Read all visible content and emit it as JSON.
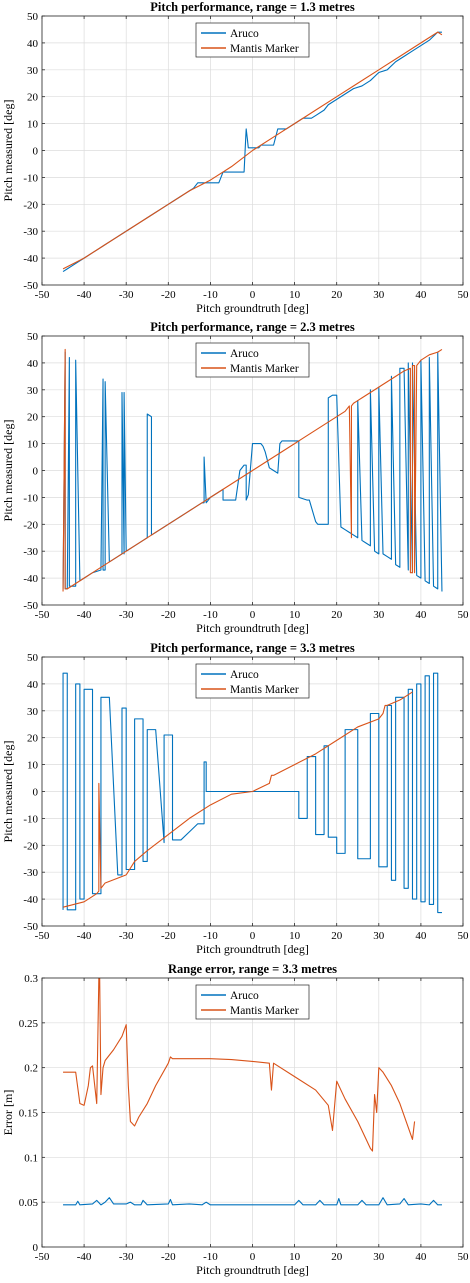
{
  "chart_data": [
    {
      "type": "line",
      "title": "Pitch performance, range = 1.3 metres",
      "xlabel": "Pitch groundtruth [deg]",
      "ylabel": "Pitch measured [deg]",
      "xlim": [
        -50,
        50
      ],
      "ylim": [
        -50,
        50
      ],
      "xticks": [
        -50,
        -40,
        -30,
        -20,
        -10,
        0,
        10,
        20,
        30,
        40,
        50
      ],
      "yticks": [
        -50,
        -40,
        -30,
        -20,
        -10,
        0,
        10,
        20,
        30,
        40,
        50
      ],
      "grid": true,
      "legend": "top-center",
      "series": [
        {
          "name": "Aruco",
          "color": "#0072BD",
          "x": [
            -45,
            -44,
            -43,
            -41,
            -40,
            -38,
            -37,
            -35,
            -34,
            -32,
            -31,
            -29,
            -28,
            -26,
            -25,
            -23,
            -22,
            -20,
            -19,
            -17,
            -16,
            -15,
            -14,
            -13,
            -12,
            -11,
            -10,
            -9,
            -8,
            -7,
            -5,
            -4,
            -3,
            -2,
            -1.6,
            -1.5,
            -1.2,
            -1,
            0,
            1,
            1.5,
            2,
            3,
            5,
            6,
            8,
            9,
            10,
            12,
            14,
            15,
            17,
            18,
            20,
            22,
            24,
            26,
            28,
            30,
            32,
            34,
            36,
            38,
            40,
            42,
            44,
            45
          ],
          "y": [
            -45,
            -44,
            -43,
            -41,
            -40,
            -38,
            -37,
            -35,
            -34,
            -32,
            -31,
            -29,
            -28,
            -26,
            -25,
            -23,
            -22,
            -20,
            -19,
            -17,
            -16,
            -15,
            -14,
            -12,
            -12,
            -12,
            -12,
            -12,
            -12,
            -8,
            -8,
            -8,
            -8,
            -8,
            5,
            8,
            4,
            1,
            1,
            1,
            1,
            2,
            2,
            2,
            8,
            8,
            9,
            10,
            12,
            12,
            13,
            15,
            17,
            19,
            21,
            23,
            24,
            26,
            29,
            30,
            33,
            35,
            37,
            39,
            41,
            44,
            44
          ]
        },
        {
          "name": "Mantis Marker",
          "color": "#D95319",
          "x": [
            -45,
            -40,
            -35,
            -30,
            -25,
            -20,
            -15,
            -10,
            -5,
            0,
            5,
            10,
            15,
            20,
            25,
            30,
            35,
            40,
            44,
            45
          ],
          "y": [
            -44,
            -40,
            -35,
            -30,
            -25,
            -20,
            -15,
            -11,
            -6,
            0,
            5,
            10,
            15,
            20,
            25,
            30,
            35,
            40,
            44,
            43
          ]
        }
      ]
    },
    {
      "type": "line",
      "title": "Pitch performance, range = 2.3 metres",
      "xlabel": "Pitch groundtruth [deg]",
      "ylabel": "Pitch measured [deg]",
      "xlim": [
        -50,
        50
      ],
      "ylim": [
        -50,
        50
      ],
      "xticks": [
        -50,
        -40,
        -30,
        -20,
        -10,
        0,
        10,
        20,
        30,
        40,
        50
      ],
      "yticks": [
        -50,
        -40,
        -30,
        -20,
        -10,
        0,
        10,
        20,
        30,
        40,
        50
      ],
      "grid": true,
      "legend": "top-center",
      "series": [
        {
          "name": "Aruco",
          "color": "#0072BD",
          "x": [
            -45,
            -44.5,
            -44.5,
            -44,
            -43.5,
            -43.5,
            -42,
            -42,
            -41,
            -40,
            -38,
            -36,
            -35.5,
            -35.5,
            -35,
            -35,
            -34,
            -32,
            -31,
            -31,
            -30.5,
            -30.5,
            -30,
            -28,
            -26,
            -25,
            -25,
            -24,
            -24,
            -23,
            -22,
            -21,
            -20,
            -19,
            -18,
            -17,
            -16,
            -14,
            -13,
            -12,
            -11.5,
            -11.5,
            -11,
            -10,
            -8,
            -7,
            -7,
            -6,
            -4,
            -3,
            -2,
            -1.5,
            -1.5,
            -1,
            0,
            1,
            2,
            2.5,
            3,
            4,
            5,
            6,
            6.5,
            6.5,
            7,
            10,
            11,
            11,
            13,
            13.5,
            15,
            15.5,
            16,
            17,
            18,
            18,
            19,
            20,
            21,
            22,
            23,
            24,
            25,
            25,
            26,
            27,
            28,
            28,
            29,
            30,
            30,
            31,
            32,
            33,
            33,
            34,
            35,
            35,
            36,
            37,
            37,
            38,
            38,
            39,
            40,
            40,
            41,
            42,
            42,
            43,
            44,
            44,
            45
          ],
          "y": [
            -44,
            44,
            -44,
            -44,
            42,
            -43,
            -43,
            41,
            -41,
            -40,
            -38,
            -37,
            34,
            -37,
            -37,
            33,
            -34,
            -32,
            -31,
            29,
            -31,
            29,
            -30,
            -28,
            -26,
            -25,
            21,
            20,
            -24,
            -23,
            -22,
            -21,
            -20,
            -19,
            -18,
            -17,
            -16,
            -14,
            -13,
            -12,
            -12,
            5,
            -12,
            -10,
            -8,
            -7,
            -11,
            -11,
            -11,
            0,
            2,
            2,
            -11,
            -9,
            10,
            10,
            10,
            9,
            7,
            1,
            0,
            -1,
            10,
            10,
            11,
            11,
            11,
            -10,
            -11,
            -11,
            -19,
            -20,
            -20,
            -20,
            -20,
            27,
            28,
            28,
            -21,
            -22,
            -23,
            -24,
            -25,
            26,
            -26,
            -27,
            -28,
            30,
            -30,
            -31,
            31,
            -31,
            -32,
            -33,
            35,
            -35,
            -36,
            38,
            38,
            -37,
            40,
            -38,
            40,
            -39,
            -40,
            41,
            -41,
            -42,
            42,
            -43,
            -44,
            44,
            -45
          ]
        },
        {
          "name": "Mantis Marker",
          "color": "#D95319",
          "x": [
            -45,
            -44.5,
            -44.5,
            -44,
            -42,
            -40,
            -38,
            -36,
            -34,
            -32,
            -30,
            -28,
            -26,
            -24,
            -22,
            -20,
            -18,
            -16,
            -14,
            -12,
            -10,
            -8,
            -6,
            -4,
            -2,
            0,
            2,
            4,
            6,
            8,
            10,
            12,
            14,
            16,
            18,
            20,
            22,
            23,
            23.5,
            23.5,
            24,
            25,
            26,
            28,
            30,
            32,
            34,
            36,
            37.5,
            37.5,
            38,
            38,
            38.5,
            38.5,
            39,
            40,
            42,
            44,
            45
          ],
          "y": [
            -45,
            45,
            -44,
            -44,
            -42,
            -40,
            -38,
            -36,
            -34,
            -32,
            -30,
            -28,
            -26,
            -24,
            -22,
            -20,
            -18,
            -16,
            -14,
            -12,
            -10,
            -8,
            -6,
            -4,
            -2,
            0,
            2,
            4,
            6,
            8,
            10,
            12,
            14,
            16,
            18,
            20,
            22,
            24,
            -25,
            24,
            25,
            26,
            27,
            29,
            31,
            33,
            35,
            37,
            38,
            -38,
            -38,
            39,
            39,
            -38,
            39,
            41,
            43,
            44,
            45
          ]
        }
      ]
    },
    {
      "type": "line",
      "title": "Pitch performance, range = 3.3 metres",
      "xlabel": "Pitch groundtruth [deg]",
      "ylabel": "Pitch measured [deg]",
      "xlim": [
        -50,
        50
      ],
      "ylim": [
        -50,
        50
      ],
      "xticks": [
        -50,
        -40,
        -30,
        -20,
        -10,
        0,
        10,
        20,
        30,
        40,
        50
      ],
      "yticks": [
        -50,
        -40,
        -30,
        -20,
        -10,
        0,
        10,
        20,
        30,
        40,
        50
      ],
      "grid": true,
      "legend": "top-center",
      "series": [
        {
          "name": "Aruco",
          "color": "#0072BD",
          "x": [
            -45,
            -45,
            -44,
            -44,
            -42,
            -42,
            -41,
            -41,
            -40,
            -40,
            -38,
            -38,
            -36,
            -36,
            -34,
            -32,
            -31,
            -31,
            -30,
            -30,
            -28,
            -28,
            -26,
            -26,
            -25,
            -25,
            -23,
            -21,
            -21,
            -19,
            -19,
            -17,
            -15,
            -13,
            -11.5,
            -11.5,
            -11,
            -11,
            -10,
            -10,
            -8,
            -6,
            -4,
            -2,
            0,
            2,
            4,
            6,
            8,
            10,
            11,
            11,
            13,
            13,
            15,
            15,
            17,
            17,
            18,
            18,
            20,
            20,
            22,
            22,
            25,
            25,
            28,
            28,
            30,
            30,
            32,
            32,
            33,
            33,
            34,
            34,
            36,
            36,
            37,
            37,
            38,
            38,
            39,
            39,
            40,
            40,
            41,
            41,
            42,
            42,
            43,
            43,
            44,
            44,
            45
          ],
          "y": [
            -44,
            44,
            44,
            -44,
            -44,
            40,
            40,
            -40,
            -40,
            38,
            38,
            -38,
            -38,
            35,
            35,
            -31,
            -31,
            31,
            31,
            -29,
            -29,
            27,
            27,
            -26,
            -26,
            23,
            23,
            -19,
            21,
            21,
            -18,
            -18,
            -15,
            -12,
            -12,
            11,
            11,
            0,
            0,
            0,
            0,
            0,
            0,
            0,
            0,
            0,
            0,
            0,
            0,
            0,
            0,
            -10,
            -10,
            13,
            13,
            -16,
            -16,
            17,
            17,
            -17,
            -17,
            -23,
            -23,
            23,
            23,
            -25,
            -25,
            29,
            29,
            -28,
            -28,
            32,
            32,
            -33,
            -33,
            35,
            35,
            -36,
            -36,
            38,
            38,
            -40,
            -40,
            40,
            40,
            -41,
            -41,
            43,
            43,
            -42,
            -42,
            44,
            44,
            -45,
            -45
          ]
        },
        {
          "name": "Mantis Marker",
          "color": "#D95319",
          "x": [
            -45,
            -40,
            -37,
            -36.5,
            -36.5,
            -36,
            -35,
            -30,
            -28,
            -25,
            -20,
            -15,
            -10,
            -5,
            0,
            4,
            4.5,
            5,
            10,
            15,
            20,
            25,
            30,
            31,
            31.5,
            32,
            35,
            37,
            38
          ],
          "y": [
            -43,
            -41,
            -38,
            -37,
            3,
            -36,
            -34,
            -31,
            -26,
            -22,
            -16,
            -10,
            -5,
            -1,
            0,
            3,
            6,
            6,
            10,
            14,
            19,
            24,
            27,
            29,
            32,
            32,
            34,
            36,
            37
          ]
        }
      ]
    },
    {
      "type": "line",
      "title": "Range error, range = 3.3 metres",
      "xlabel": "Pitch groundtruth [deg]",
      "ylabel": "Error [m]",
      "xlim": [
        -50,
        50
      ],
      "ylim": [
        0,
        0.3
      ],
      "xticks": [
        -50,
        -40,
        -30,
        -20,
        -10,
        0,
        10,
        20,
        30,
        40,
        50
      ],
      "yticks": [
        0,
        0.05,
        0.1,
        0.15,
        0.2,
        0.25,
        0.3
      ],
      "grid": true,
      "legend": "top-center",
      "series": [
        {
          "name": "Aruco",
          "color": "#0072BD",
          "x": [
            -45,
            -42,
            -41.5,
            -41,
            -38,
            -37,
            -36,
            -35,
            -34,
            -33,
            -30,
            -29,
            -28,
            -26.5,
            -26,
            -25,
            -20,
            -19.5,
            -19,
            -15,
            -12,
            -11,
            -10,
            0,
            10,
            11,
            12,
            15,
            16,
            17,
            20,
            20.5,
            21,
            25,
            26,
            27,
            30,
            31,
            32,
            35,
            36,
            37,
            40,
            42,
            43,
            44,
            45
          ],
          "y": [
            0.047,
            0.047,
            0.051,
            0.047,
            0.048,
            0.052,
            0.047,
            0.05,
            0.055,
            0.048,
            0.048,
            0.05,
            0.047,
            0.047,
            0.052,
            0.047,
            0.048,
            0.053,
            0.047,
            0.048,
            0.047,
            0.05,
            0.047,
            0.047,
            0.047,
            0.052,
            0.047,
            0.047,
            0.052,
            0.047,
            0.047,
            0.054,
            0.047,
            0.047,
            0.052,
            0.047,
            0.047,
            0.055,
            0.047,
            0.048,
            0.054,
            0.047,
            0.048,
            0.047,
            0.052,
            0.047,
            0.047
          ]
        },
        {
          "name": "Mantis Marker",
          "color": "#D95319",
          "x": [
            -45,
            -42,
            -41,
            -40,
            -39,
            -38.5,
            -38,
            -37,
            -36.5,
            -36.3,
            -36,
            -35.5,
            -35,
            -33,
            -31,
            -30,
            -29.5,
            -29,
            -28,
            -27,
            -25,
            -23,
            -20,
            -19.5,
            -19,
            -15,
            -10,
            -5,
            0,
            4,
            4.5,
            5,
            10,
            15,
            18,
            19,
            20,
            22,
            25,
            27,
            28,
            28.5,
            29,
            29.5,
            30,
            31,
            33,
            35,
            38,
            38.5
          ],
          "y": [
            0.195,
            0.195,
            0.16,
            0.158,
            0.18,
            0.2,
            0.202,
            0.16,
            0.3,
            0.3,
            0.17,
            0.2,
            0.208,
            0.22,
            0.235,
            0.248,
            0.18,
            0.14,
            0.135,
            0.145,
            0.16,
            0.18,
            0.205,
            0.212,
            0.21,
            0.21,
            0.21,
            0.209,
            0.207,
            0.205,
            0.175,
            0.205,
            0.19,
            0.175,
            0.158,
            0.13,
            0.185,
            0.165,
            0.14,
            0.12,
            0.11,
            0.107,
            0.17,
            0.15,
            0.2,
            0.195,
            0.18,
            0.16,
            0.12,
            0.14
          ]
        }
      ]
    }
  ]
}
